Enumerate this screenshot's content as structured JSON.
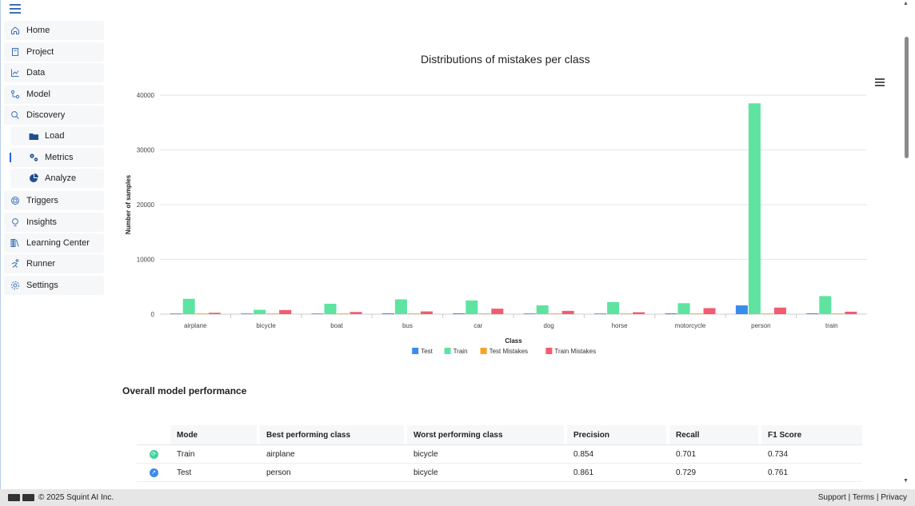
{
  "sidebar": {
    "items": [
      {
        "label": "Home",
        "icon": "home-icon"
      },
      {
        "label": "Project",
        "icon": "project-icon"
      },
      {
        "label": "Data",
        "icon": "data-chart-icon"
      },
      {
        "label": "Model",
        "icon": "model-icon"
      },
      {
        "label": "Discovery",
        "icon": "discovery-icon"
      },
      {
        "label": "Load",
        "icon": "folder-icon"
      },
      {
        "label": "Metrics",
        "icon": "gears-icon"
      },
      {
        "label": "Analyze",
        "icon": "pie-chart-icon"
      },
      {
        "label": "Triggers",
        "icon": "triggers-icon"
      },
      {
        "label": "Insights",
        "icon": "lightbulb-icon"
      },
      {
        "label": "Learning Center",
        "icon": "books-icon"
      },
      {
        "label": "Runner",
        "icon": "runner-icon"
      },
      {
        "label": "Settings",
        "icon": "gear-icon"
      }
    ],
    "active": "Metrics",
    "accent_color": "#2563eb"
  },
  "chart_data": {
    "type": "bar",
    "title": "Distributions of mistakes per class",
    "xlabel": "Class",
    "ylabel": "Number of samples",
    "ylim": [
      0,
      40000
    ],
    "yticks": [
      "0",
      "10000",
      "20000",
      "30000",
      "40000"
    ],
    "categories": [
      "airplane",
      "bicycle",
      "boat",
      "bus",
      "car",
      "dog",
      "horse",
      "motorcycle",
      "person",
      "train"
    ],
    "series": [
      {
        "name": "Test",
        "color": "#3b8beb",
        "values": [
          100,
          80,
          100,
          150,
          150,
          80,
          100,
          150,
          1600,
          150
        ]
      },
      {
        "name": "Train",
        "color": "#5ee3a1",
        "values": [
          2800,
          800,
          1900,
          2700,
          2500,
          1600,
          2200,
          2000,
          38500,
          3300
        ]
      },
      {
        "name": "Test Mistakes",
        "color": "#f5a524",
        "values": [
          20,
          20,
          20,
          20,
          20,
          20,
          20,
          20,
          20,
          20
        ]
      },
      {
        "name": "Train Mistakes",
        "color": "#f25c6e",
        "values": [
          250,
          750,
          400,
          500,
          1000,
          600,
          350,
          1100,
          1200,
          450
        ]
      }
    ],
    "legend_position": "bottom",
    "grid": true
  },
  "performance": {
    "title": "Overall model performance",
    "columns": [
      "Mode",
      "Best performing class",
      "Worst performing class",
      "Precision",
      "Recall",
      "F1 Score"
    ],
    "rows": [
      {
        "icon": "train-mode-icon",
        "icon_color": "#3fd39a",
        "icon_glyph": "⟳",
        "mode": "Train",
        "best": "airplane",
        "worst": "bicycle",
        "precision": "0.854",
        "recall": "0.701",
        "f1": "0.734"
      },
      {
        "icon": "test-mode-icon",
        "icon_color": "#3b8beb",
        "icon_glyph": "↗",
        "mode": "Test",
        "best": "person",
        "worst": "bicycle",
        "precision": "0.861",
        "recall": "0.729",
        "f1": "0.761"
      }
    ]
  },
  "footer": {
    "copyright": "© 2025 Squint AI Inc.",
    "support": "Support",
    "terms": "Terms",
    "privacy": "Privacy",
    "separator": "|"
  }
}
